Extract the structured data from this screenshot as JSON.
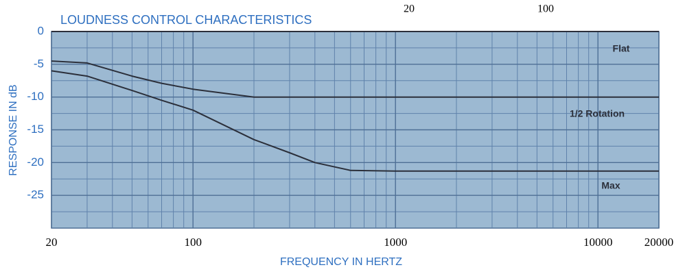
{
  "chart_data": {
    "type": "line",
    "title": "LOUDNESS CONTROL CHARACTERISTICS",
    "annotations": [
      "20",
      "100"
    ],
    "x_label": "FREQUENCY IN HERTZ",
    "y_label": "RESPONSE IN dB",
    "log_x": true,
    "grid": true,
    "xlim": [
      20,
      20000
    ],
    "ylim": [
      -30,
      0
    ],
    "xticks": [
      20,
      100,
      1000,
      10000,
      20000
    ],
    "yticks": [
      0,
      -5,
      -10,
      -15,
      -20,
      -25
    ],
    "xminor_ticks": [
      30,
      40,
      50,
      60,
      70,
      80,
      90,
      200,
      300,
      400,
      500,
      600,
      700,
      800,
      900,
      2000,
      3000,
      4000,
      5000,
      6000,
      7000,
      8000,
      9000
    ],
    "yminor_ticks": [
      -2.5,
      -7.5,
      -12.5,
      -17.5,
      -22.5,
      -27.5
    ],
    "x": [
      20,
      30,
      50,
      70,
      100,
      200,
      300,
      400,
      600,
      1000,
      20000
    ],
    "series": [
      {
        "name": "Flat",
        "color": "#2b2f3a",
        "values": [
          0,
          0,
          0,
          0,
          0,
          0,
          0,
          0,
          0,
          0,
          0
        ]
      },
      {
        "name": "1/2 Rotation",
        "color": "#2b2f3a",
        "values": [
          -4.5,
          -4.8,
          -6.8,
          -7.9,
          -8.8,
          -10,
          -10,
          -10,
          -10,
          -10,
          -10
        ]
      },
      {
        "name": "Max",
        "color": "#2b2f3a",
        "values": [
          -6,
          -6.8,
          -9,
          -10.5,
          -12,
          -16.5,
          -18.5,
          -20,
          -21.2,
          -21.3,
          -21.3
        ]
      }
    ]
  }
}
